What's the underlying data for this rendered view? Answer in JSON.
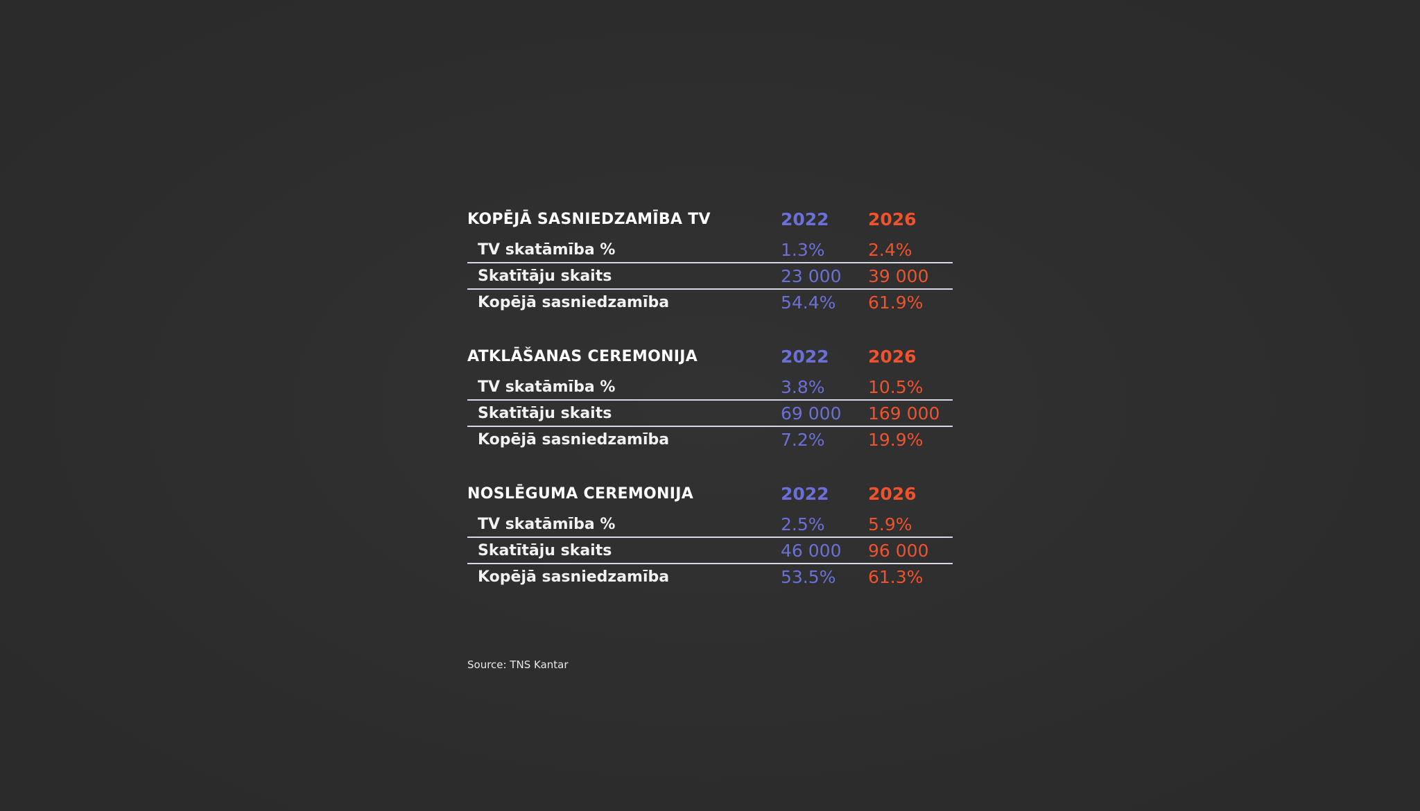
{
  "colors": {
    "y2022": "#6b70d8",
    "y2026": "#f0522e",
    "background": "#2e2e2e",
    "text": "#ffffff"
  },
  "chart_data": {
    "type": "table",
    "years": [
      "2022",
      "2026"
    ],
    "sections": [
      {
        "title": "KOPĒJĀ SASNIEDZAMĪBA TV",
        "years": [
          "2022",
          "2026"
        ],
        "rows": [
          {
            "label": "TV skatāmība %",
            "values": [
              "1.3%",
              "2.4%"
            ]
          },
          {
            "label": "Skatītāju skaits",
            "values": [
              "23 000",
              "39 000"
            ]
          },
          {
            "label": "Kopējā sasniedzamība",
            "values": [
              "54.4%",
              "61.9%"
            ]
          }
        ]
      },
      {
        "title": "ATKLĀŠANAS CEREMONIJA",
        "years": [
          "2022",
          "2026"
        ],
        "rows": [
          {
            "label": "TV skatāmība %",
            "values": [
              "3.8%",
              "10.5%"
            ]
          },
          {
            "label": "Skatītāju skaits",
            "values": [
              "69 000",
              "169 000"
            ]
          },
          {
            "label": "Kopējā sasniedzamība",
            "values": [
              "7.2%",
              "19.9%"
            ]
          }
        ]
      },
      {
        "title": "NOSLĒGUMA CEREMONIJA",
        "years": [
          "2022",
          "2026"
        ],
        "rows": [
          {
            "label": "TV skatāmība %",
            "values": [
              "2.5%",
              "5.9%"
            ]
          },
          {
            "label": "Skatītāju skaits",
            "values": [
              "46 000",
              "96 000"
            ]
          },
          {
            "label": "Kopējā sasniedzamība",
            "values": [
              "53.5%",
              "61.3%"
            ]
          }
        ]
      }
    ],
    "source": "Source: TNS Kantar"
  }
}
